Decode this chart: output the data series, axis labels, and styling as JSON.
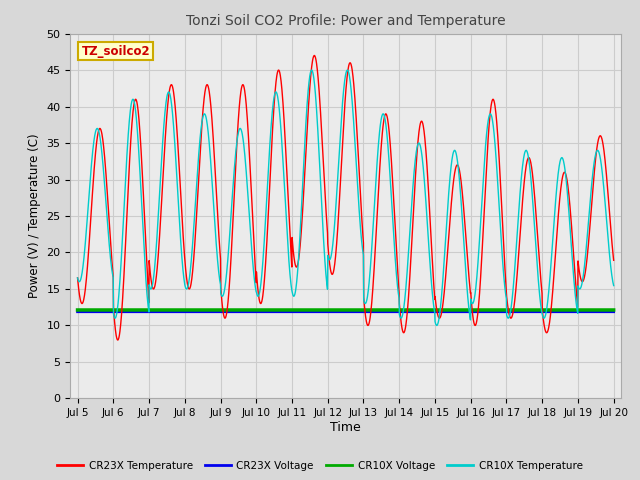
{
  "title": "Tonzi Soil CO2 Profile: Power and Temperature",
  "xlabel": "Time",
  "ylabel": "Power (V) / Temperature (C)",
  "ylim": [
    0,
    50
  ],
  "xlim": [
    4.8,
    20.2
  ],
  "yticks": [
    0,
    5,
    10,
    15,
    20,
    25,
    30,
    35,
    40,
    45,
    50
  ],
  "xtick_labels": [
    "Jul 5",
    "Jul 6",
    "Jul 7",
    "Jul 8",
    "Jul 9",
    "Jul 10",
    "Jul 11",
    "Jul 12",
    "Jul 13",
    "Jul 14",
    "Jul 15",
    "Jul 16",
    "Jul 17",
    "Jul 18",
    "Jul 19",
    "Jul 20"
  ],
  "xtick_positions": [
    5,
    6,
    7,
    8,
    9,
    10,
    11,
    12,
    13,
    14,
    15,
    16,
    17,
    18,
    19,
    20
  ],
  "grid_color": "#cccccc",
  "fig_bg_color": "#d8d8d8",
  "plot_bg_color": "#ebebeb",
  "cr23x_temp_color": "#ff0000",
  "cr23x_volt_color": "#0000ee",
  "cr10x_volt_color": "#00aa00",
  "cr10x_temp_color": "#00cccc",
  "voltage_value": 12.0,
  "annotation_text": "TZ_soilco2",
  "annotation_bg": "#ffffcc",
  "annotation_border": "#ccaa00",
  "legend_labels": [
    "CR23X Temperature",
    "CR23X Voltage",
    "CR10X Voltage",
    "CR10X Temperature"
  ],
  "legend_colors": [
    "#ff0000",
    "#0000ee",
    "#00aa00",
    "#00cccc"
  ],
  "cr23x_peaks": [
    37,
    41,
    43,
    43,
    43,
    45,
    47,
    46,
    39,
    38,
    32,
    41,
    33,
    31,
    36,
    36
  ],
  "cr23x_troughs": [
    13,
    8,
    15,
    15,
    11,
    13,
    18,
    17,
    10,
    9,
    11,
    10,
    11,
    9,
    16,
    15
  ],
  "cr10x_peaks": [
    37,
    41,
    42,
    39,
    37,
    42,
    45,
    45,
    39,
    35,
    34,
    39,
    34,
    33,
    34,
    33
  ],
  "cr10x_troughs": [
    16,
    11,
    15,
    15,
    14,
    14,
    14,
    19,
    13,
    11,
    10,
    13,
    11,
    11,
    15,
    15
  ]
}
